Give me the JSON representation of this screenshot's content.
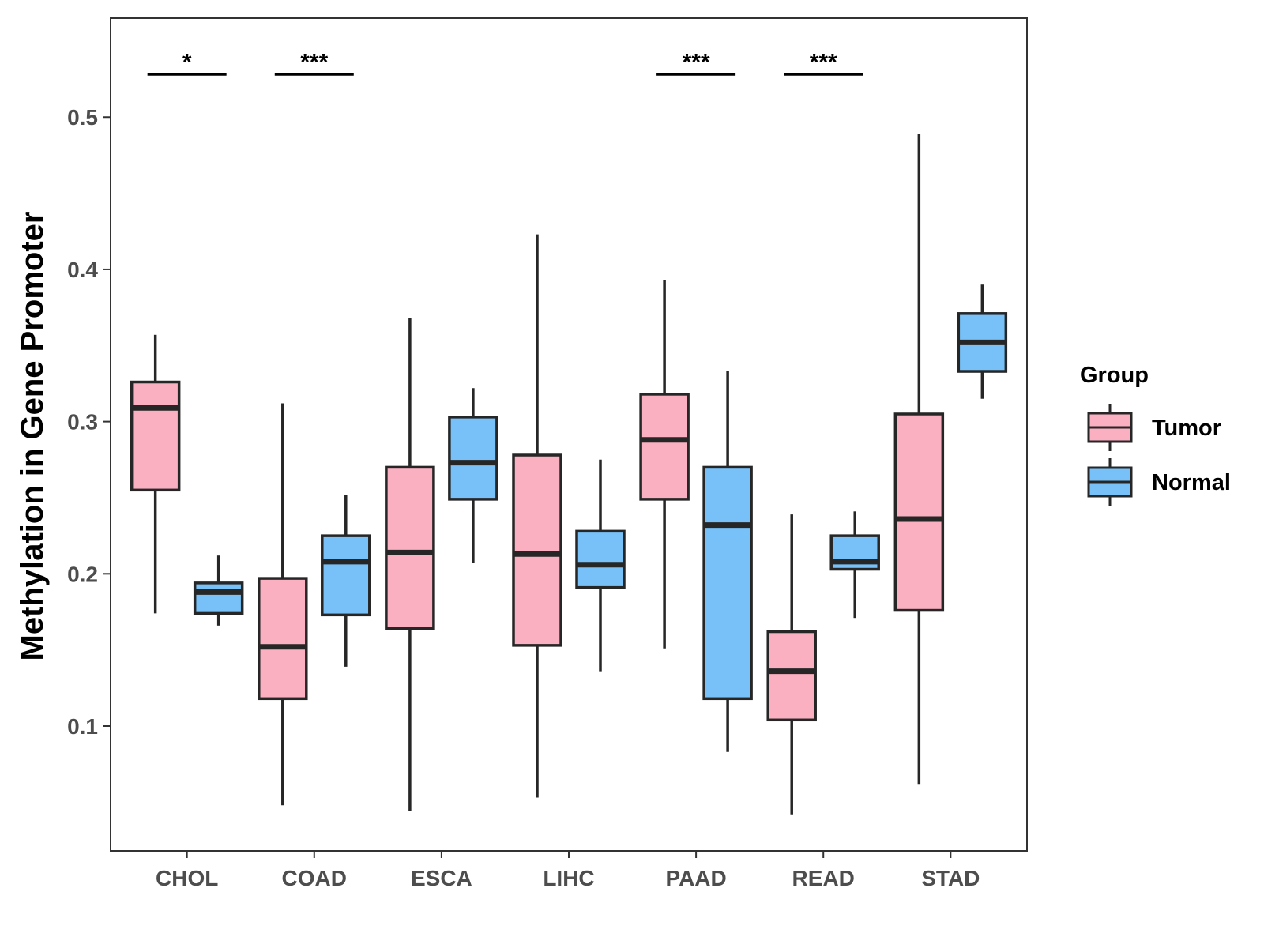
{
  "chart_data": {
    "type": "boxplot",
    "title": "",
    "xlabel": "",
    "ylabel": "Methylation in Gene Promoter",
    "ylim": [
      0.018,
      0.565
    ],
    "yticks": [
      0.1,
      0.2,
      0.3,
      0.4,
      0.5
    ],
    "ytick_labels": [
      "0.1",
      "0.2",
      "0.3",
      "0.4",
      "0.5"
    ],
    "categories": [
      "CHOL",
      "COAD",
      "ESCA",
      "LIHC",
      "PAAD",
      "READ",
      "STAD"
    ],
    "grid": false,
    "legend": {
      "title": "Group",
      "position": "right",
      "entries": [
        "Tumor",
        "Normal"
      ]
    },
    "series": [
      {
        "name": "Tumor",
        "color": "#FBB0C1",
        "boxes": [
          {
            "whisker_low": 0.174,
            "q1": 0.255,
            "median": 0.309,
            "q3": 0.326,
            "whisker_high": 0.357
          },
          {
            "whisker_low": 0.048,
            "q1": 0.118,
            "median": 0.152,
            "q3": 0.197,
            "whisker_high": 0.312
          },
          {
            "whisker_low": 0.044,
            "q1": 0.164,
            "median": 0.214,
            "q3": 0.27,
            "whisker_high": 0.368
          },
          {
            "whisker_low": 0.053,
            "q1": 0.153,
            "median": 0.213,
            "q3": 0.278,
            "whisker_high": 0.423
          },
          {
            "whisker_low": 0.151,
            "q1": 0.249,
            "median": 0.288,
            "q3": 0.318,
            "whisker_high": 0.393
          },
          {
            "whisker_low": 0.042,
            "q1": 0.104,
            "median": 0.136,
            "q3": 0.162,
            "whisker_high": 0.239
          },
          {
            "whisker_low": 0.062,
            "q1": 0.176,
            "median": 0.236,
            "q3": 0.305,
            "whisker_high": 0.489
          }
        ]
      },
      {
        "name": "Normal",
        "color": "#77C1F8",
        "boxes": [
          {
            "whisker_low": 0.166,
            "q1": 0.174,
            "median": 0.188,
            "q3": 0.194,
            "whisker_high": 0.212
          },
          {
            "whisker_low": 0.139,
            "q1": 0.173,
            "median": 0.208,
            "q3": 0.225,
            "whisker_high": 0.252
          },
          {
            "whisker_low": 0.207,
            "q1": 0.249,
            "median": 0.273,
            "q3": 0.303,
            "whisker_high": 0.322
          },
          {
            "whisker_low": 0.136,
            "q1": 0.191,
            "median": 0.206,
            "q3": 0.228,
            "whisker_high": 0.275
          },
          {
            "whisker_low": 0.083,
            "q1": 0.118,
            "median": 0.232,
            "q3": 0.27,
            "whisker_high": 0.333
          },
          {
            "whisker_low": 0.171,
            "q1": 0.203,
            "median": 0.208,
            "q3": 0.225,
            "whisker_high": 0.241
          },
          {
            "whisker_low": 0.315,
            "q1": 0.333,
            "median": 0.352,
            "q3": 0.371,
            "whisker_high": 0.39
          }
        ]
      }
    ],
    "significance": [
      {
        "category": "CHOL",
        "label": "*"
      },
      {
        "category": "COAD",
        "label": "***"
      },
      {
        "category": "PAAD",
        "label": "***"
      },
      {
        "category": "READ",
        "label": "***"
      }
    ],
    "significance_y": 0.528
  }
}
